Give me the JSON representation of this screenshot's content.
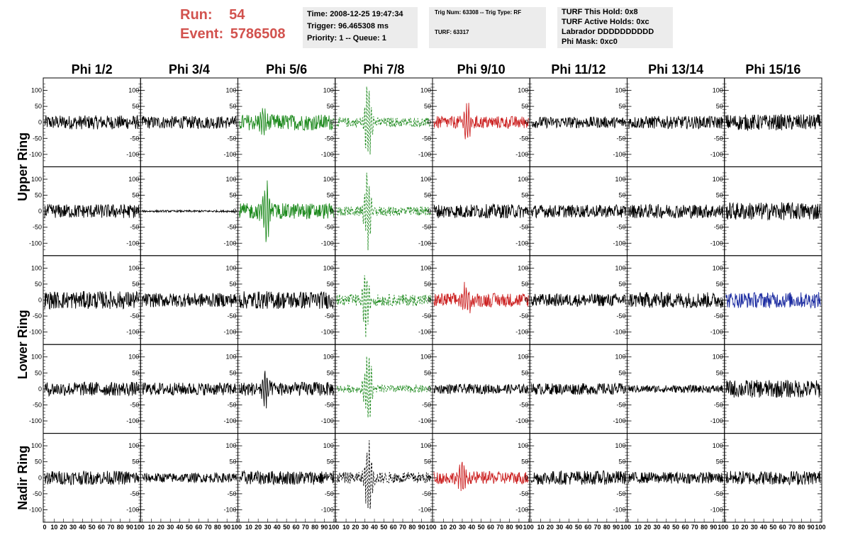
{
  "header": {
    "run_label": "Run:",
    "run_value": "54",
    "event_label": "Event:",
    "event_value": "5786508",
    "colors": {
      "run_text": "#d2524e",
      "info_bg": "#ececec"
    }
  },
  "info_time": {
    "time": "Time: 2008-12-25 19:47:34",
    "trigger": "Trigger: 96.465308 ms",
    "priority": "Priority: 1 -- Queue: 1"
  },
  "info_trig": {
    "trig": "Trig Num: 63308 -- Trig Type: RF",
    "turf": "TURF: 63317"
  },
  "info_turf": {
    "hold": "TURF This Hold: 0x8",
    "active": "TURF Active Holds: 0xc",
    "labrador": "Labrador DDDDDDDDDD",
    "phimask": "Phi Mask: 0xc0"
  },
  "chart_data": {
    "type": "line",
    "columns": [
      "Phi 1/2",
      "Phi 3/4",
      "Phi 5/6",
      "Phi 7/8",
      "Phi 9/10",
      "Phi 11/12",
      "Phi 13/14",
      "Phi 15/16"
    ],
    "rows": [
      "Upper Ring",
      "Upper Ring",
      "Lower Ring",
      "Lower Ring",
      "Nadir Ring"
    ],
    "row_titles": [
      {
        "label": "Upper Ring",
        "spans_rows": [
          0,
          1
        ]
      },
      {
        "label": "Lower Ring",
        "spans_rows": [
          2,
          3
        ]
      },
      {
        "label": "Nadir Ring",
        "spans_rows": [
          4
        ]
      }
    ],
    "ylim": [
      -130,
      130
    ],
    "xlim": [
      0,
      100
    ],
    "yticks": [
      100,
      50,
      0,
      -50,
      -100
    ],
    "xtick_labels": [
      "0",
      "10",
      "20",
      "30",
      "40",
      "50",
      "60",
      "70",
      "80",
      "90",
      "100"
    ],
    "colors": {
      "black": "#000000",
      "green": "#1e8a1e",
      "red": "#cc2222",
      "blue": "#1a2aa0"
    },
    "panels": [
      [
        {
          "color": "black",
          "style": "solid",
          "amp": 22,
          "pulse_x": 0,
          "pulse_amp": 0
        },
        {
          "color": "black",
          "style": "solid",
          "amp": 20,
          "pulse_x": 0,
          "pulse_amp": 0
        },
        {
          "color": "green",
          "style": "solid",
          "amp": 25,
          "pulse_x": 25,
          "pulse_amp": 35
        },
        {
          "color": "green",
          "style": "dashed",
          "amp": 15,
          "pulse_x": 33,
          "pulse_amp": 110
        },
        {
          "color": "red",
          "style": "solid",
          "amp": 20,
          "pulse_x": 36,
          "pulse_amp": 55
        },
        {
          "color": "black",
          "style": "solid",
          "amp": 18,
          "pulse_x": 0,
          "pulse_amp": 0
        },
        {
          "color": "black",
          "style": "solid",
          "amp": 20,
          "pulse_x": 0,
          "pulse_amp": 0
        },
        {
          "color": "black",
          "style": "solid",
          "amp": 25,
          "pulse_x": 0,
          "pulse_amp": 0
        }
      ],
      [
        {
          "color": "black",
          "style": "solid",
          "amp": 22,
          "pulse_x": 0,
          "pulse_amp": 0
        },
        {
          "color": "black",
          "style": "solid",
          "amp": 3,
          "pulse_x": 0,
          "pulse_amp": 0
        },
        {
          "color": "green",
          "style": "solid",
          "amp": 25,
          "pulse_x": 28,
          "pulse_amp": 80
        },
        {
          "color": "green",
          "style": "dashed",
          "amp": 15,
          "pulse_x": 33,
          "pulse_amp": 110
        },
        {
          "color": "black",
          "style": "solid",
          "amp": 22,
          "pulse_x": 0,
          "pulse_amp": 0
        },
        {
          "color": "black",
          "style": "solid",
          "amp": 20,
          "pulse_x": 0,
          "pulse_amp": 0
        },
        {
          "color": "black",
          "style": "solid",
          "amp": 22,
          "pulse_x": 0,
          "pulse_amp": 0
        },
        {
          "color": "black",
          "style": "solid",
          "amp": 28,
          "pulse_x": 0,
          "pulse_amp": 0
        }
      ],
      [
        {
          "color": "black",
          "style": "solid",
          "amp": 28,
          "pulse_x": 0,
          "pulse_amp": 0
        },
        {
          "color": "black",
          "style": "solid",
          "amp": 22,
          "pulse_x": 0,
          "pulse_amp": 0
        },
        {
          "color": "black",
          "style": "solid",
          "amp": 28,
          "pulse_x": 0,
          "pulse_amp": 0
        },
        {
          "color": "green",
          "style": "dashed",
          "amp": 18,
          "pulse_x": 31,
          "pulse_amp": 105
        },
        {
          "color": "red",
          "style": "solid",
          "amp": 22,
          "pulse_x": 34,
          "pulse_amp": 50
        },
        {
          "color": "black",
          "style": "solid",
          "amp": 20,
          "pulse_x": 0,
          "pulse_amp": 0
        },
        {
          "color": "black",
          "style": "solid",
          "amp": 25,
          "pulse_x": 0,
          "pulse_amp": 0
        },
        {
          "color": "blue",
          "style": "solid",
          "amp": 25,
          "pulse_x": 0,
          "pulse_amp": 0
        }
      ],
      [
        {
          "color": "black",
          "style": "solid",
          "amp": 22,
          "pulse_x": 0,
          "pulse_amp": 0
        },
        {
          "color": "black",
          "style": "solid",
          "amp": 20,
          "pulse_x": 0,
          "pulse_amp": 0
        },
        {
          "color": "black",
          "style": "solid",
          "amp": 22,
          "pulse_x": 27,
          "pulse_amp": 50
        },
        {
          "color": "green",
          "style": "dashed",
          "amp": 12,
          "pulse_x": 33,
          "pulse_amp": 110
        },
        {
          "color": "black",
          "style": "solid",
          "amp": 15,
          "pulse_x": 0,
          "pulse_amp": 0
        },
        {
          "color": "black",
          "style": "solid",
          "amp": 18,
          "pulse_x": 0,
          "pulse_amp": 0
        },
        {
          "color": "black",
          "style": "solid",
          "amp": 12,
          "pulse_x": 0,
          "pulse_amp": 0
        },
        {
          "color": "black",
          "style": "solid",
          "amp": 28,
          "pulse_x": 0,
          "pulse_amp": 0
        }
      ],
      [
        {
          "color": "black",
          "style": "solid",
          "amp": 22,
          "pulse_x": 0,
          "pulse_amp": 0
        },
        {
          "color": "black",
          "style": "solid",
          "amp": 15,
          "pulse_x": 0,
          "pulse_amp": 0
        },
        {
          "color": "black",
          "style": "solid",
          "amp": 22,
          "pulse_x": 0,
          "pulse_amp": 0
        },
        {
          "color": "black",
          "style": "dashed",
          "amp": 18,
          "pulse_x": 34,
          "pulse_amp": 100
        },
        {
          "color": "red",
          "style": "solid",
          "amp": 20,
          "pulse_x": 30,
          "pulse_amp": 40
        },
        {
          "color": "black",
          "style": "solid",
          "amp": 22,
          "pulse_x": 0,
          "pulse_amp": 0
        },
        {
          "color": "black",
          "style": "solid",
          "amp": 18,
          "pulse_x": 0,
          "pulse_amp": 0
        },
        {
          "color": "black",
          "style": "solid",
          "amp": 22,
          "pulse_x": 0,
          "pulse_amp": 0
        }
      ]
    ]
  }
}
